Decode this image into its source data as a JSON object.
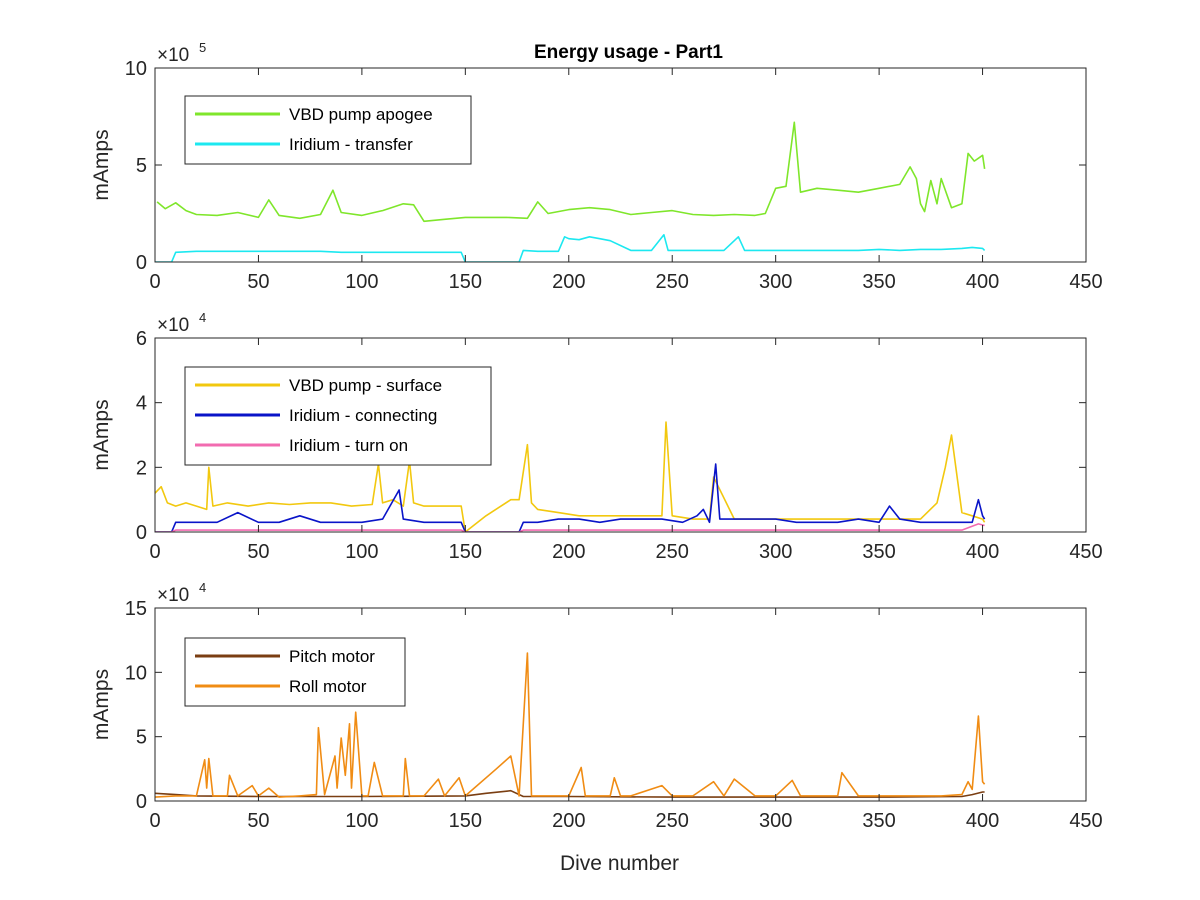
{
  "figure": {
    "background": "#ffffff",
    "axis_color": "#262626"
  },
  "chart_data": [
    {
      "type": "line",
      "title": "Energy usage - Part1",
      "xlabel": "",
      "ylabel": "mAmps",
      "xlim": [
        0,
        450
      ],
      "ylim": [
        0,
        1000000
      ],
      "x_ticks": [
        0,
        50,
        100,
        150,
        200,
        250,
        300,
        350,
        400,
        450
      ],
      "y_ticks": [
        0,
        500000,
        1000000
      ],
      "y_tick_labels": [
        "0",
        "5",
        "10"
      ],
      "exponent_label": "×10",
      "exponent": "5",
      "grid": false,
      "legend_position": "top-left",
      "series": [
        {
          "name": "VBD pump apogee",
          "color": "#7FE62B",
          "x": [
            1,
            5,
            10,
            15,
            20,
            30,
            40,
            50,
            55,
            60,
            70,
            80,
            86,
            90,
            100,
            110,
            120,
            125,
            130,
            140,
            150,
            160,
            170,
            180,
            185,
            190,
            200,
            210,
            220,
            230,
            240,
            250,
            260,
            270,
            280,
            290,
            295,
            300,
            305,
            309,
            312,
            320,
            330,
            340,
            350,
            360,
            365,
            368,
            370,
            372,
            375,
            378,
            380,
            385,
            390,
            393,
            396,
            400,
            401
          ],
          "y": [
            310000,
            275000,
            305000,
            265000,
            245000,
            240000,
            255000,
            230000,
            320000,
            240000,
            225000,
            245000,
            370000,
            255000,
            240000,
            265000,
            300000,
            295000,
            210000,
            220000,
            230000,
            230000,
            230000,
            225000,
            310000,
            250000,
            270000,
            280000,
            270000,
            245000,
            255000,
            265000,
            245000,
            240000,
            245000,
            240000,
            250000,
            380000,
            390000,
            720000,
            360000,
            380000,
            370000,
            360000,
            380000,
            400000,
            490000,
            430000,
            300000,
            260000,
            420000,
            300000,
            430000,
            280000,
            300000,
            560000,
            520000,
            550000,
            480000
          ]
        },
        {
          "name": "Iridium - transfer",
          "color": "#1CE8F0",
          "x": [
            0,
            8,
            10,
            20,
            30,
            40,
            50,
            60,
            70,
            80,
            90,
            100,
            110,
            120,
            130,
            140,
            148,
            150,
            165,
            176,
            178,
            185,
            195,
            198,
            200,
            205,
            210,
            215,
            220,
            230,
            240,
            246,
            248,
            255,
            265,
            275,
            282,
            285,
            290,
            300,
            310,
            320,
            330,
            340,
            350,
            360,
            370,
            380,
            390,
            395,
            400,
            401
          ],
          "y": [
            0,
            0,
            50000,
            55000,
            55000,
            55000,
            55000,
            55000,
            55000,
            55000,
            50000,
            50000,
            50000,
            50000,
            50000,
            50000,
            50000,
            0,
            0,
            0,
            60000,
            55000,
            55000,
            130000,
            120000,
            115000,
            130000,
            120000,
            110000,
            60000,
            60000,
            140000,
            60000,
            60000,
            60000,
            60000,
            130000,
            60000,
            60000,
            60000,
            60000,
            60000,
            60000,
            60000,
            65000,
            60000,
            65000,
            65000,
            70000,
            75000,
            70000,
            60000
          ]
        }
      ]
    },
    {
      "type": "line",
      "title": "",
      "xlabel": "",
      "ylabel": "mAmps",
      "xlim": [
        0,
        450
      ],
      "ylim": [
        0,
        60000
      ],
      "x_ticks": [
        0,
        50,
        100,
        150,
        200,
        250,
        300,
        350,
        400,
        450
      ],
      "y_ticks": [
        0,
        20000,
        40000,
        60000
      ],
      "y_tick_labels": [
        "0",
        "2",
        "4",
        "6"
      ],
      "exponent_label": "×10",
      "exponent": "4",
      "grid": false,
      "legend_position": "top-left",
      "series": [
        {
          "name": "VBD pump - surface",
          "color": "#F2C80F",
          "x": [
            0,
            3,
            6,
            10,
            15,
            20,
            25,
            26,
            28,
            35,
            45,
            55,
            65,
            75,
            85,
            95,
            105,
            108,
            110,
            115,
            120,
            123,
            125,
            130,
            140,
            148,
            150,
            160,
            172,
            176,
            180,
            182,
            185,
            195,
            205,
            215,
            225,
            235,
            245,
            247,
            250,
            260,
            268,
            270,
            280,
            290,
            300,
            310,
            320,
            330,
            340,
            350,
            360,
            370,
            378,
            382,
            385,
            390,
            395,
            400,
            401
          ],
          "y": [
            12000,
            14000,
            9000,
            8000,
            9000,
            8000,
            7000,
            20000,
            8000,
            9000,
            8000,
            9000,
            8500,
            9000,
            9000,
            8000,
            8500,
            21000,
            9000,
            10000,
            8000,
            22000,
            9000,
            8000,
            8000,
            8000,
            0,
            5000,
            10000,
            10000,
            27000,
            9000,
            7000,
            6000,
            5000,
            5000,
            5000,
            5000,
            5000,
            34000,
            5000,
            4000,
            4000,
            17000,
            4000,
            4000,
            4000,
            4000,
            4000,
            4000,
            4000,
            4000,
            4000,
            4000,
            9000,
            20000,
            30000,
            6000,
            5000,
            4000,
            3000
          ]
        },
        {
          "name": "Iridium - connecting",
          "color": "#0A14C8",
          "x": [
            0,
            8,
            10,
            20,
            30,
            40,
            50,
            60,
            70,
            80,
            90,
            100,
            110,
            118,
            120,
            130,
            140,
            148,
            150,
            176,
            178,
            185,
            195,
            205,
            215,
            225,
            235,
            245,
            255,
            262,
            265,
            268,
            271,
            273,
            280,
            290,
            300,
            310,
            320,
            330,
            340,
            350,
            355,
            360,
            370,
            380,
            390,
            395,
            398,
            400,
            401
          ],
          "y": [
            0,
            0,
            3000,
            3000,
            3000,
            6000,
            3000,
            3000,
            5000,
            3000,
            3000,
            3000,
            4000,
            13000,
            4000,
            3000,
            3000,
            3000,
            0,
            0,
            3000,
            3000,
            4000,
            4000,
            3000,
            4000,
            4000,
            4000,
            3000,
            5000,
            7000,
            3000,
            21000,
            4000,
            4000,
            4000,
            4000,
            3000,
            3000,
            3000,
            4000,
            3000,
            8000,
            4000,
            3000,
            3000,
            3000,
            3000,
            10000,
            5000,
            4000
          ]
        },
        {
          "name": "Iridium - turn on",
          "color": "#F26BB0",
          "x": [
            0,
            8,
            10,
            50,
            100,
            148,
            150,
            176,
            178,
            200,
            250,
            300,
            350,
            390,
            398,
            401
          ],
          "y": [
            0,
            0,
            600,
            600,
            600,
            600,
            0,
            0,
            600,
            600,
            600,
            600,
            600,
            600,
            2500,
            2000
          ]
        }
      ]
    },
    {
      "type": "line",
      "title": "",
      "xlabel": "Dive number",
      "ylabel": "mAmps",
      "xlim": [
        0,
        450
      ],
      "ylim": [
        0,
        150000
      ],
      "x_ticks": [
        0,
        50,
        100,
        150,
        200,
        250,
        300,
        350,
        400,
        450
      ],
      "y_ticks": [
        0,
        50000,
        100000,
        150000
      ],
      "y_tick_labels": [
        "0",
        "5",
        "10",
        "15"
      ],
      "exponent_label": "×10",
      "exponent": "4",
      "grid": false,
      "legend_position": "top-left",
      "series": [
        {
          "name": "Pitch motor",
          "color": "#7A3E12",
          "x": [
            0,
            10,
            20,
            50,
            100,
            150,
            160,
            172,
            178,
            200,
            250,
            300,
            350,
            390,
            395,
            400,
            401
          ],
          "y": [
            6000,
            5000,
            4000,
            3500,
            3500,
            4000,
            6000,
            8000,
            3500,
            3500,
            3000,
            3000,
            3000,
            3500,
            5000,
            7000,
            7000
          ]
        },
        {
          "name": "Roll motor",
          "color": "#F08C14",
          "x": [
            0,
            10,
            20,
            24,
            25,
            26,
            28,
            35,
            36,
            40,
            47,
            50,
            55,
            60,
            70,
            78,
            79,
            82,
            87,
            88,
            90,
            92,
            94,
            95,
            97,
            100,
            103,
            106,
            110,
            120,
            121,
            123,
            130,
            137,
            140,
            147,
            150,
            165,
            172,
            176,
            180,
            182,
            190,
            200,
            206,
            208,
            220,
            222,
            225,
            230,
            245,
            250,
            260,
            270,
            275,
            280,
            290,
            300,
            308,
            312,
            320,
            330,
            332,
            340,
            350,
            360,
            370,
            380,
            390,
            393,
            395,
            398,
            400,
            401
          ],
          "y": [
            3000,
            4000,
            4000,
            32000,
            10000,
            33000,
            4000,
            4000,
            20000,
            4000,
            12000,
            4000,
            10000,
            3000,
            4000,
            5000,
            57000,
            5000,
            35000,
            10000,
            49000,
            20000,
            60000,
            10000,
            69000,
            4000,
            4000,
            30000,
            4000,
            4000,
            33000,
            4000,
            4000,
            17000,
            4000,
            18000,
            4000,
            25000,
            35000,
            4000,
            115000,
            4000,
            4000,
            4000,
            26000,
            4000,
            4000,
            18000,
            4000,
            4000,
            12000,
            4000,
            4000,
            15000,
            4000,
            17000,
            4000,
            4000,
            16000,
            4000,
            4000,
            4000,
            22000,
            4000,
            4000,
            4000,
            4000,
            4000,
            5000,
            15000,
            9000,
            66000,
            15000,
            13000
          ]
        }
      ]
    }
  ]
}
